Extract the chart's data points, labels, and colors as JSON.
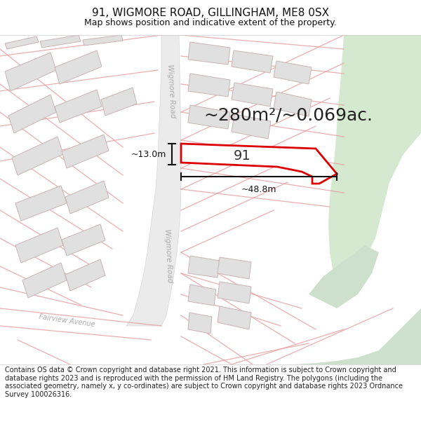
{
  "title_line1": "91, WIGMORE ROAD, GILLINGHAM, ME8 0SX",
  "title_line2": "Map shows position and indicative extent of the property.",
  "footer_text": "Contains OS data © Crown copyright and database right 2021. This information is subject to Crown copyright and database rights 2023 and is reproduced with the permission of HM Land Registry. The polygons (including the associated geometry, namely x, y co-ordinates) are subject to Crown copyright and database rights 2023 Ordnance Survey 100026316.",
  "area_label": "~280m²/~0.069ac.",
  "width_label": "~48.8m",
  "height_label": "~13.0m",
  "plot_number": "91",
  "bg_color": "#ffffff",
  "map_bg": "#f7f7f7",
  "road_band_color": "#e8e8e8",
  "building_fill": "#e0e0e0",
  "building_stroke": "#c8b4b4",
  "plot_fill": "#ffffff",
  "plot_stroke": "#dd0000",
  "green_area_color": "#d5e8d0",
  "green_area2_color": "#cce0cc",
  "road_line_color": "#e8a0a0",
  "road_label_color": "#aaaaaa",
  "dim_color": "#111111",
  "title_fontsize": 11,
  "subtitle_fontsize": 9,
  "footer_fontsize": 7,
  "area_fontsize": 18
}
